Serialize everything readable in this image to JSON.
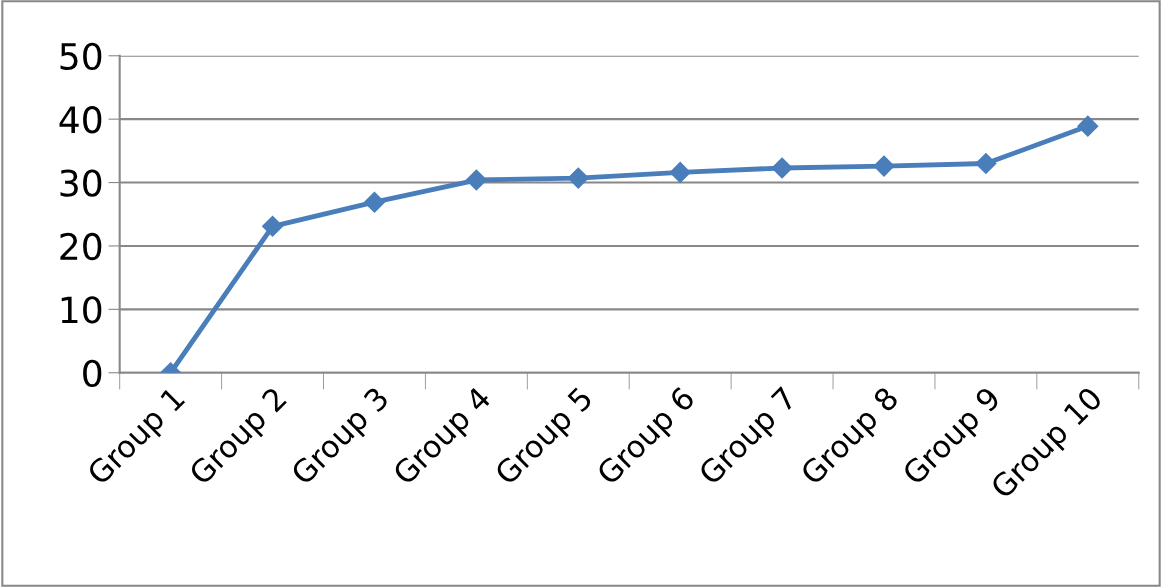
{
  "chart_data": {
    "type": "line",
    "categories": [
      "Group 1",
      "Group 2",
      "Group 3",
      "Group 4",
      "Group 5",
      "Group 6",
      "Group 7",
      "Group 8",
      "Group 9",
      "Group 10"
    ],
    "series": [
      {
        "color": "#4a7ebb",
        "values": [
          0,
          23.1,
          26.9,
          30.4,
          30.7,
          31.6,
          32.3,
          32.6,
          33.0,
          38.9
        ]
      }
    ],
    "ylim": [
      0,
      50
    ],
    "yticks": [
      0,
      10,
      20,
      30,
      40,
      50
    ],
    "grid": "y",
    "marker": "diamond",
    "line_style": "solid",
    "legend": false
  }
}
